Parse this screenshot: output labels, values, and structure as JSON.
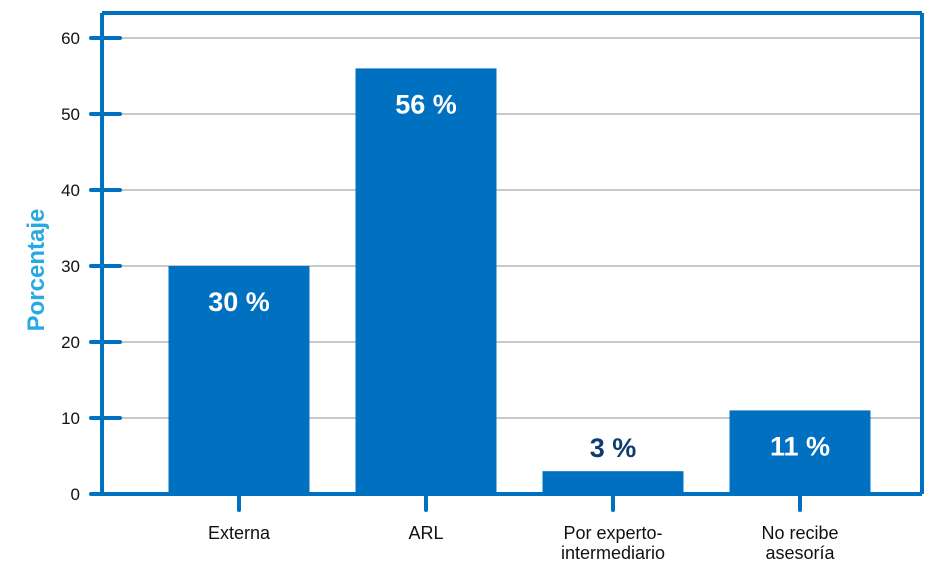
{
  "chart_data": {
    "type": "bar",
    "title": "",
    "xlabel": "",
    "ylabel": "Porcentaje",
    "ylim": [
      0,
      60
    ],
    "yticks": [
      0,
      10,
      20,
      30,
      40,
      50,
      60
    ],
    "grid": true,
    "categories": [
      [
        "Externa"
      ],
      [
        "ARL"
      ],
      [
        "Por experto-",
        "intermediario"
      ],
      [
        "No recibe",
        "asesoría"
      ]
    ],
    "values": [
      30,
      56,
      3,
      11
    ],
    "data_labels": [
      "30 %",
      "56 %",
      "3 %",
      "11 %"
    ]
  },
  "colors": {
    "bar": "#0070c0",
    "axis": "#0070c0",
    "grid": "#c8c8c8",
    "ylabel": "#29a9e1",
    "label_inside": "#ffffff",
    "label_outside": "#0c3d6e"
  }
}
